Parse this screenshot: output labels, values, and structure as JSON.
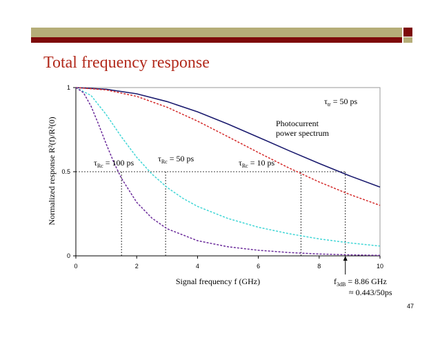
{
  "slide": {
    "title": "Total frequency response",
    "page_number": "47"
  },
  "colors": {
    "bar_olive": "#b5ad78",
    "bar_dark_red": "#7d0a0a",
    "title_red": "#b22a1c"
  },
  "chart_data": {
    "type": "line",
    "xlabel": "Signal frequency f (GHz)",
    "ylabel": "Normalized response R²(f)/R²(0)",
    "xlim": [
      0,
      10
    ],
    "ylim": [
      0,
      1
    ],
    "x_ticks": [
      "0",
      "2",
      "4",
      "6",
      "8",
      "10"
    ],
    "y_ticks": [
      "0",
      "0.5",
      "1"
    ],
    "grid": false,
    "annotations": {
      "tau_tr": {
        "symbol": "τ",
        "sub": "tr",
        "rest": " = 50 ps"
      },
      "photocurrent": [
        "Photocurrent",
        "power spectrum"
      ],
      "tau_rc_100": {
        "symbol": "τ",
        "sub": "Rc",
        "rest": " = 100 ps"
      },
      "tau_rc_50": {
        "symbol": "τ",
        "sub": "Rc",
        "rest": " = 50 ps"
      },
      "tau_rc_10": {
        "symbol": "τ",
        "sub": "Rc",
        "rest": " = 10 ps"
      },
      "f3db": {
        "prefix": "f",
        "sub": "3dB",
        "rest": " = 8.86 GHz"
      },
      "f3db_approx": "≈ 0.443/50ps"
    },
    "half_power_level": 0.5,
    "series": [
      {
        "color": "#1a1a6e",
        "style": "solid",
        "x": [
          0,
          1,
          2,
          3,
          4,
          5,
          6,
          7,
          8,
          9,
          10
        ],
        "y": [
          1.0,
          0.99,
          0.963,
          0.917,
          0.856,
          0.783,
          0.705,
          0.626,
          0.549,
          0.476,
          0.409
        ]
      },
      {
        "color": "#d42a2a",
        "style": "dashed",
        "x": [
          0,
          1,
          2,
          3,
          4,
          5,
          6,
          7,
          8,
          9,
          10
        ],
        "y": [
          1.0,
          0.986,
          0.948,
          0.883,
          0.801,
          0.708,
          0.614,
          0.523,
          0.439,
          0.365,
          0.3
        ]
      },
      {
        "color": "#3fd6d6",
        "style": "dashed",
        "x": [
          0,
          0.5,
          1,
          1.5,
          2,
          2.5,
          3,
          3.5,
          4,
          5,
          6,
          7,
          8,
          9,
          10
        ],
        "y": [
          1.0,
          0.953,
          0.839,
          0.707,
          0.586,
          0.486,
          0.407,
          0.344,
          0.294,
          0.222,
          0.17,
          0.132,
          0.101,
          0.077,
          0.058
        ]
      },
      {
        "color": "#6a2a9a",
        "style": "dashed",
        "x": [
          0,
          0.25,
          0.5,
          0.75,
          1,
          1.25,
          1.5,
          2,
          2.5,
          3,
          4,
          5,
          6,
          7,
          8,
          9,
          10
        ],
        "y": [
          1.0,
          0.97,
          0.889,
          0.78,
          0.664,
          0.555,
          0.461,
          0.318,
          0.224,
          0.161,
          0.09,
          0.054,
          0.033,
          0.02,
          0.011,
          0.006,
          0.003
        ]
      }
    ],
    "f3db_markers": [
      1.5,
      2.95,
      7.4,
      8.86
    ]
  }
}
